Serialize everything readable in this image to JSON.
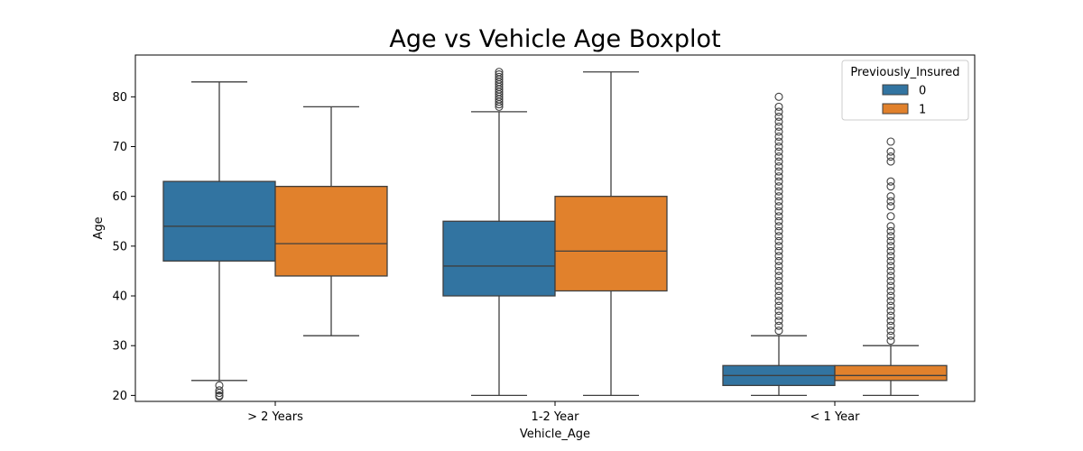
{
  "chart_data": {
    "type": "boxplot",
    "title": "Age vs Vehicle Age Boxplot",
    "xlabel": "Vehicle_Age",
    "ylabel": "Age",
    "categories": [
      "> 2 Years",
      "1-2 Year",
      "< 1 Year"
    ],
    "ylim": [
      18.8,
      88.4
    ],
    "yticks": [
      20,
      30,
      40,
      50,
      60,
      70,
      80
    ],
    "grid": false,
    "legend": {
      "title": "Previously_Insured",
      "placement": "top-right",
      "entries": [
        "0",
        "1"
      ]
    },
    "series": [
      {
        "name": "0",
        "color": "#3274a1",
        "boxes": [
          {
            "category": "> 2 Years",
            "whisker_low": 23,
            "q1": 47,
            "median": 54,
            "q3": 63,
            "whisker_high": 83,
            "outliers": [
              22,
              21,
              20.5,
              20,
              19.8
            ]
          },
          {
            "category": "1-2 Year",
            "whisker_low": 20,
            "q1": 40,
            "median": 46,
            "q3": 55,
            "whisker_high": 77,
            "outliers": [
              78,
              78.5,
              79,
              79.5,
              80,
              80.5,
              81,
              81.5,
              82,
              82.5,
              83,
              83.5,
              84,
              84.5,
              85
            ]
          },
          {
            "category": "< 1 Year",
            "whisker_low": 20,
            "q1": 22,
            "median": 24,
            "q3": 26,
            "whisker_high": 32,
            "outliers": [
              33,
              34,
              35,
              36,
              37,
              38,
              39,
              40,
              41,
              42,
              43,
              44,
              45,
              46,
              47,
              48,
              49,
              50,
              51,
              52,
              53,
              54,
              55,
              56,
              57,
              58,
              59,
              60,
              61,
              62,
              63,
              64,
              65,
              66,
              67,
              68,
              69,
              70,
              71,
              72,
              73,
              74,
              75,
              76,
              77,
              78,
              80
            ]
          }
        ]
      },
      {
        "name": "1",
        "color": "#e1812c",
        "boxes": [
          {
            "category": "> 2 Years",
            "whisker_low": 32,
            "q1": 44,
            "median": 50.5,
            "q3": 62,
            "whisker_high": 78,
            "outliers": []
          },
          {
            "category": "1-2 Year",
            "whisker_low": 20,
            "q1": 41,
            "median": 49,
            "q3": 60,
            "whisker_high": 85,
            "outliers": []
          },
          {
            "category": "< 1 Year",
            "whisker_low": 20,
            "q1": 23,
            "median": 24,
            "q3": 26,
            "whisker_high": 30,
            "outliers": [
              31,
              32,
              33,
              34,
              35,
              36,
              37,
              38,
              39,
              40,
              41,
              42,
              43,
              44,
              45,
              46,
              47,
              48,
              49,
              50,
              51,
              52,
              53,
              54,
              56,
              58,
              59,
              60,
              62,
              63,
              67,
              68,
              69,
              71
            ]
          }
        ]
      }
    ]
  }
}
